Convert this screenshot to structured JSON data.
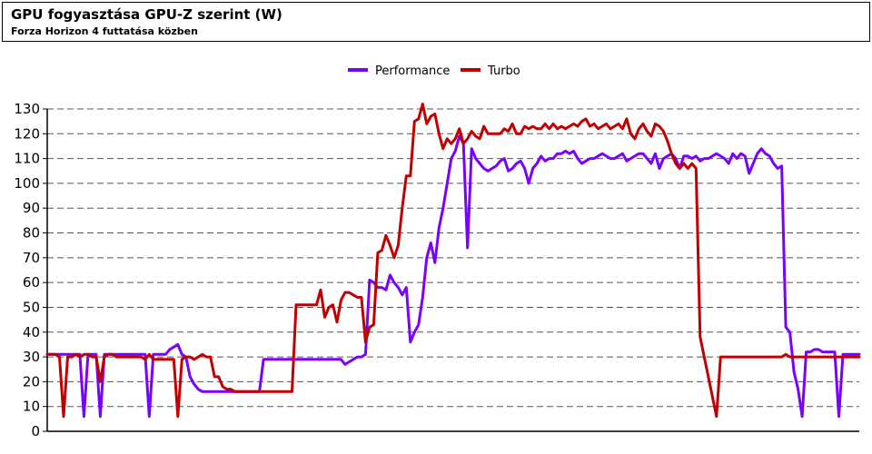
{
  "header": {
    "title": "GPU fogyasztása GPU-Z szerint (W)",
    "subtitle": "Forza Horizon 4 futtatása közben"
  },
  "chart_data": {
    "type": "line",
    "title": "GPU fogyasztása GPU-Z szerint (W)",
    "subtitle": "Forza Horizon 4 futtatása közben",
    "xlabel": "",
    "ylabel": "",
    "ylim": [
      0,
      130
    ],
    "yticks": [
      0,
      10,
      20,
      30,
      40,
      50,
      60,
      70,
      80,
      90,
      100,
      110,
      120,
      130
    ],
    "grid": true,
    "legend_position": "top-center",
    "x_points": 200,
    "series": [
      {
        "name": "Performance",
        "color": "#7a00ff",
        "values": [
          31,
          31,
          31,
          31,
          31,
          31,
          31,
          31,
          31,
          6,
          31,
          31,
          31,
          6,
          31,
          31,
          31,
          31,
          31,
          31,
          31,
          31,
          31,
          31,
          31,
          6,
          31,
          31,
          31,
          31,
          33,
          34,
          35,
          31,
          30,
          22,
          19,
          17,
          16,
          16,
          16,
          16,
          16,
          16,
          16,
          16,
          16,
          16,
          16,
          16,
          16,
          16,
          16,
          29,
          29,
          29,
          29,
          29,
          29,
          29,
          29,
          29,
          29,
          29,
          29,
          29,
          29,
          29,
          29,
          29,
          29,
          29,
          29,
          27,
          28,
          29,
          30,
          30,
          31,
          61,
          60,
          58,
          58,
          57,
          63,
          60,
          58,
          55,
          58,
          36,
          40,
          43,
          54,
          70,
          76,
          68,
          82,
          90,
          100,
          110,
          113,
          119,
          116,
          74,
          114,
          110,
          108,
          106,
          105,
          106,
          107,
          109,
          110,
          105,
          106,
          108,
          109,
          106,
          100,
          106,
          108,
          111,
          109,
          110,
          110,
          112,
          112,
          113,
          112,
          113,
          110,
          108,
          109,
          110,
          110,
          111,
          112,
          111,
          110,
          110,
          111,
          112,
          109,
          110,
          111,
          112,
          112,
          110,
          108,
          112,
          106,
          110,
          111,
          112,
          110,
          106,
          111,
          111,
          110,
          111,
          109,
          110,
          110,
          111,
          112,
          111,
          110,
          108,
          112,
          110,
          112,
          111,
          104,
          108,
          112,
          114,
          112,
          111,
          108,
          106,
          107,
          42,
          40,
          24,
          17,
          6,
          32,
          32,
          33,
          33,
          32,
          32,
          32,
          32,
          6,
          31,
          31,
          31,
          31,
          31
        ],
        "end_value": 31
      },
      {
        "name": "Turbo",
        "color": "#c00000",
        "values": [
          31,
          31,
          31,
          30,
          6,
          30,
          30,
          31,
          30,
          31,
          31,
          30,
          30,
          20,
          30,
          31,
          31,
          30,
          30,
          30,
          30,
          30,
          30,
          30,
          29,
          31,
          29,
          29,
          29,
          29,
          29,
          29,
          6,
          29,
          30,
          30,
          29,
          30,
          31,
          30,
          30,
          22,
          22,
          18,
          17,
          17,
          16,
          16,
          16,
          16,
          16,
          16,
          16,
          16,
          16,
          16,
          16,
          16,
          16,
          16,
          16,
          51,
          51,
          51,
          51,
          51,
          51,
          57,
          46,
          50,
          51,
          44,
          53,
          56,
          56,
          55,
          54,
          54,
          36,
          42,
          43,
          72,
          73,
          79,
          75,
          70,
          75,
          90,
          103,
          103,
          125,
          126,
          132,
          124,
          127,
          128,
          120,
          114,
          118,
          116,
          118,
          122,
          116,
          118,
          121,
          119,
          118,
          123,
          120,
          120,
          120,
          120,
          122,
          121,
          124,
          120,
          120,
          123,
          122,
          123,
          122,
          122,
          124,
          122,
          124,
          122,
          123,
          122,
          123,
          124,
          123,
          125,
          126,
          123,
          124,
          122,
          123,
          124,
          122,
          123,
          124,
          122,
          126,
          120,
          118,
          122,
          124,
          121,
          119,
          124,
          123,
          121,
          117,
          112,
          108,
          106,
          108,
          106,
          108,
          106,
          38,
          30,
          22,
          14,
          6,
          30,
          30,
          30,
          30,
          30,
          30,
          30,
          30,
          30,
          30,
          30,
          30,
          30,
          30,
          30,
          30,
          31,
          30,
          30,
          30,
          30,
          30,
          30,
          30,
          30,
          30,
          30,
          30,
          30,
          30,
          30,
          30,
          30,
          30,
          30
        ],
        "end_value": 30
      }
    ]
  }
}
